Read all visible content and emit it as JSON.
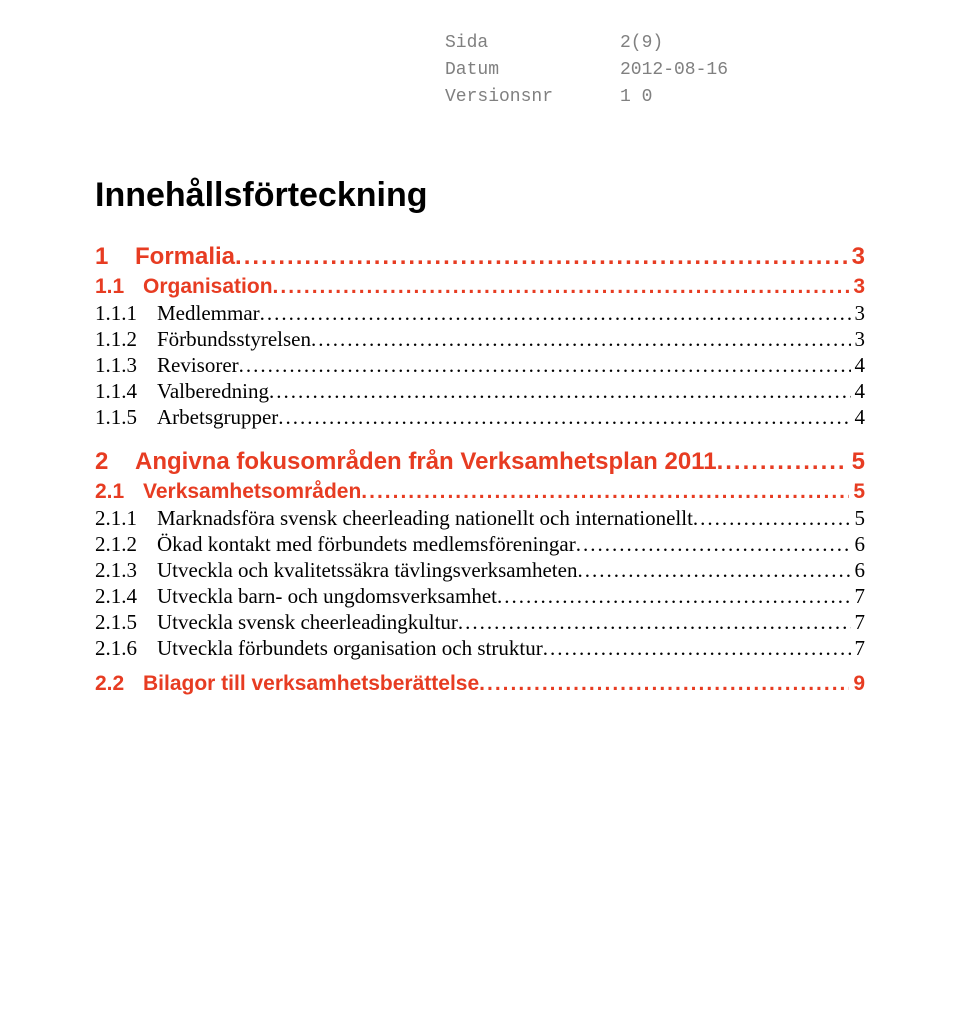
{
  "header": {
    "sida_label": "Sida",
    "sida_value": "2(9)",
    "datum_label": "Datum",
    "datum_value": "2012-08-16",
    "version_label": "Versionsnr",
    "version_value": "1 0"
  },
  "title": "Innehållsförteckning",
  "colors": {
    "heading_red": "#e73c22",
    "header_gray": "#808080",
    "body_black": "#000000",
    "background": "#ffffff"
  },
  "fonts": {
    "header_family": "Courier New",
    "heading_family": "Arial",
    "body_family": "Times New Roman",
    "title_size_pt": 26,
    "l1_size_pt": 18,
    "l2_size_pt": 16,
    "l3_size_pt": 16,
    "header_size_pt": 14
  },
  "toc": [
    {
      "level": 1,
      "num": "1",
      "text": "Formalia",
      "page": "3"
    },
    {
      "level": 2,
      "num": "1.1",
      "text": "Organisation",
      "page": "3"
    },
    {
      "level": 3,
      "num": "1.1.1",
      "text": "Medlemmar",
      "page": "3"
    },
    {
      "level": 3,
      "num": "1.1.2",
      "text": "Förbundsstyrelsen",
      "page": "3"
    },
    {
      "level": 3,
      "num": "1.1.3",
      "text": "Revisorer",
      "page": "4"
    },
    {
      "level": 3,
      "num": "1.1.4",
      "text": "Valberedning",
      "page": "4"
    },
    {
      "level": 3,
      "num": "1.1.5",
      "text": "Arbetsgrupper",
      "page": "4"
    },
    {
      "level": 1,
      "num": "2",
      "text": "Angivna fokusområden från Verksamhetsplan 2011",
      "page": "5"
    },
    {
      "level": 2,
      "num": "2.1",
      "text": "Verksamhetsområden",
      "page": "5"
    },
    {
      "level": 3,
      "num": "2.1.1",
      "text": "Marknadsföra svensk cheerleading nationellt och internationellt",
      "page": "5"
    },
    {
      "level": 3,
      "num": "2.1.2",
      "text": "Ökad kontakt med förbundets medlemsföreningar",
      "page": "6"
    },
    {
      "level": 3,
      "num": "2.1.3",
      "text": "Utveckla och kvalitetssäkra tävlingsverksamheten",
      "page": "6"
    },
    {
      "level": 3,
      "num": "2.1.4",
      "text": "Utveckla barn- och ungdomsverksamhet",
      "page": "7"
    },
    {
      "level": 3,
      "num": "2.1.5",
      "text": "Utveckla svensk cheerleadingkultur",
      "page": "7"
    },
    {
      "level": 3,
      "num": "2.1.6",
      "text": "Utveckla förbundets organisation och struktur",
      "page": "7"
    },
    {
      "level": 2,
      "num": "2.2",
      "text": "Bilagor till verksamhetsberättelse",
      "page": "9"
    }
  ]
}
